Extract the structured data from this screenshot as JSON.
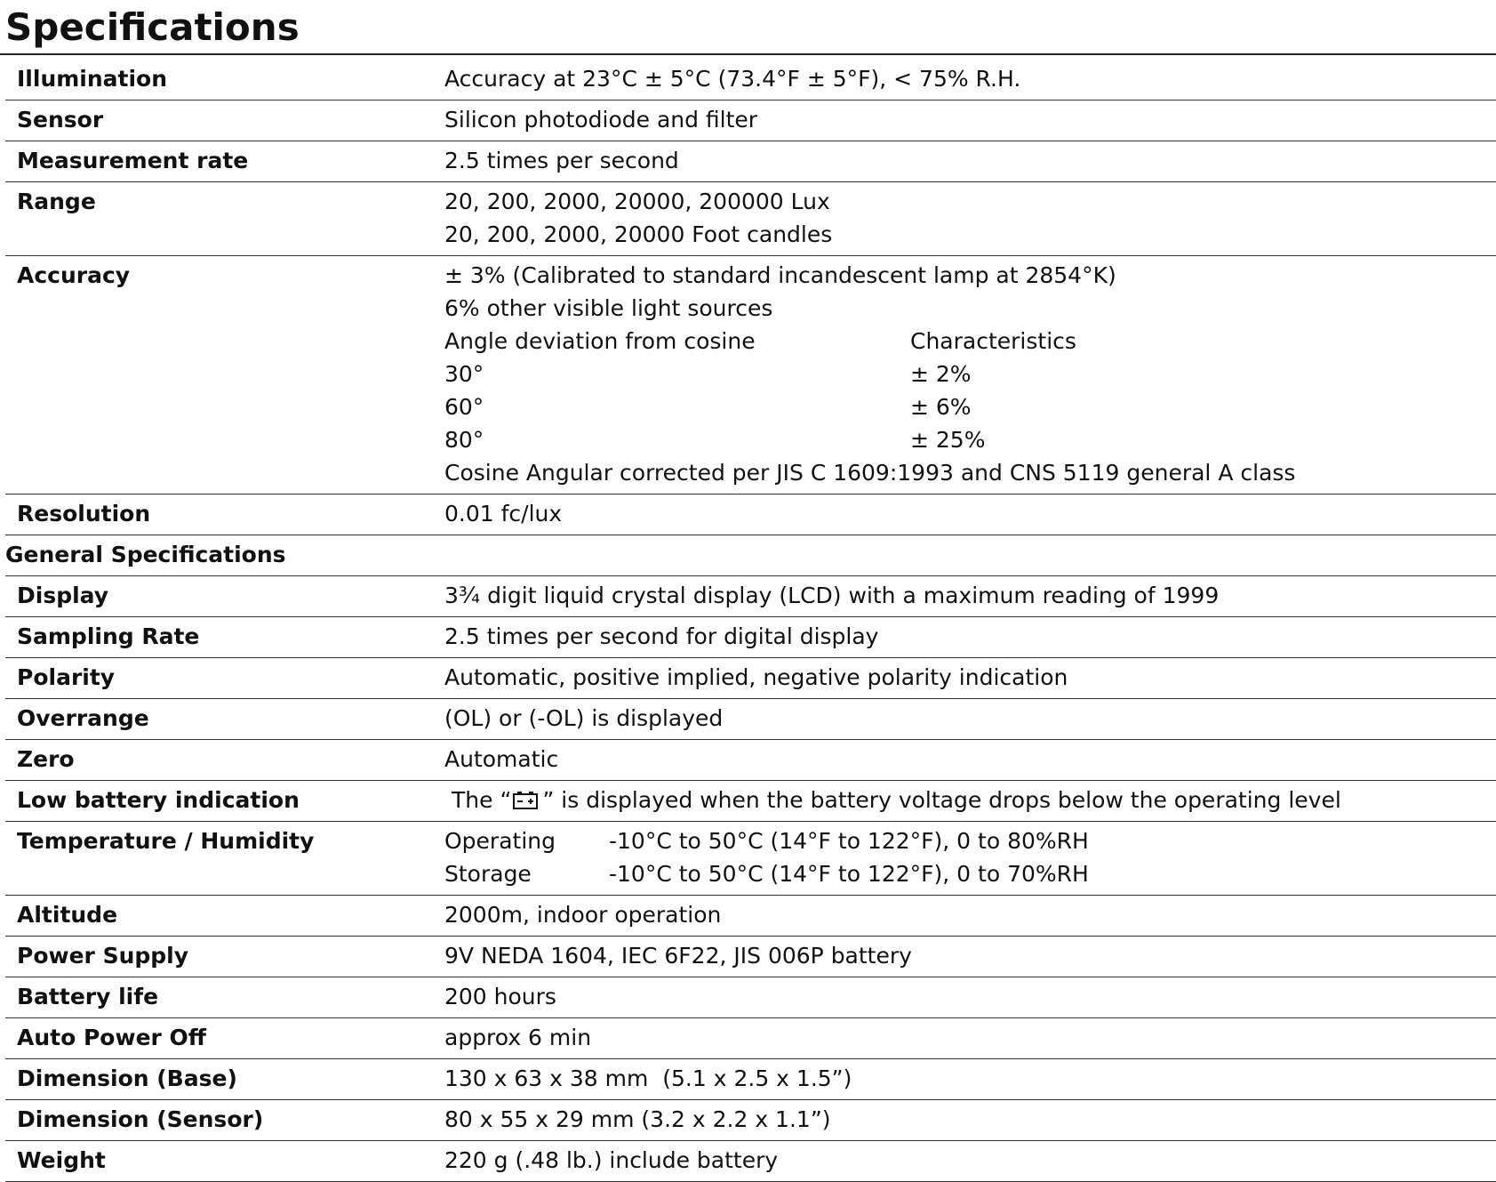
{
  "title": "Specifications",
  "sections": [
    {
      "rows": [
        {
          "label": "Illumination",
          "lines": [
            [
              "Accuracy at 23°C ± 5°C (73.4°F ± 5°F), < 75% R.H."
            ]
          ]
        },
        {
          "label": "Sensor",
          "lines": [
            [
              "Silicon photodiode and filter"
            ]
          ]
        },
        {
          "label": "Measurement rate",
          "lines": [
            [
              "2.5 times per second"
            ]
          ]
        },
        {
          "label": "Range",
          "lines": [
            [
              "20, 200, 2000, 20000, 200000 Lux"
            ],
            [
              "20, 200, 2000, 20000 Foot candles"
            ]
          ]
        },
        {
          "label": "Accuracy",
          "lines": [
            [
              "± 3% (Calibrated to standard incandescent lamp at 2854°K)"
            ],
            [
              "6% other visible light sources"
            ],
            [
              "Angle deviation from cosine",
              "Characteristics"
            ],
            [
              "30°",
              "± 2%"
            ],
            [
              "60°",
              "± 6%"
            ],
            [
              "80°",
              "± 25%"
            ],
            [
              "Cosine Angular corrected per JIS C 1609:1993 and CNS 5119 general A class"
            ]
          ]
        },
        {
          "label": "Resolution",
          "lines": [
            [
              "0.01 fc/lux"
            ]
          ]
        }
      ]
    },
    {
      "heading": "General Specifications",
      "rows": [
        {
          "label": "Display",
          "lines": [
            [
              "3¾ digit liquid crystal display (LCD) with a maximum reading of 1999"
            ]
          ]
        },
        {
          "label": "Sampling Rate",
          "lines": [
            [
              "2.5 times per second for digital display"
            ]
          ]
        },
        {
          "label": "Polarity",
          "lines": [
            [
              "Automatic, positive implied, negative polarity indication"
            ]
          ]
        },
        {
          "label": "Overrange",
          "lines": [
            [
              "(OL) or (-OL) is displayed"
            ]
          ]
        },
        {
          "label": "Zero",
          "lines": [
            [
              "Automatic"
            ]
          ]
        },
        {
          "label": "Low battery indication",
          "lines": [
            [
              "The “",
              "” is displayed when the battery voltage drops below the operating level"
            ]
          ]
        },
        {
          "label": "Temperature / Humidity",
          "lines": [
            [
              "Operating",
              "-10°C to 50°C (14°F to 122°F), 0 to 80%RH"
            ],
            [
              "Storage",
              "-10°C to 50°C (14°F to 122°F), 0 to 70%RH"
            ]
          ]
        },
        {
          "label": "Altitude",
          "lines": [
            [
              "2000m, indoor operation"
            ]
          ]
        },
        {
          "label": "Power Supply",
          "lines": [
            [
              "9V NEDA 1604, IEC 6F22, JIS 006P battery"
            ]
          ]
        },
        {
          "label": "Battery life",
          "lines": [
            [
              "200 hours"
            ]
          ]
        },
        {
          "label": "Auto Power Off",
          "lines": [
            [
              "approx 6 min"
            ]
          ]
        },
        {
          "label": "Dimension (Base)",
          "lines": [
            [
              "130 x 63 x 38 mm  (5.1 x 2.5 x 1.5”)"
            ]
          ]
        },
        {
          "label": "Dimension (Sensor)",
          "lines": [
            [
              "80 x 55 x 29 mm (3.2 x 2.2 x 1.1”)"
            ]
          ]
        },
        {
          "label": "Weight",
          "lines": [
            [
              "220 g (.48 lb.) include battery"
            ]
          ]
        }
      ]
    }
  ]
}
